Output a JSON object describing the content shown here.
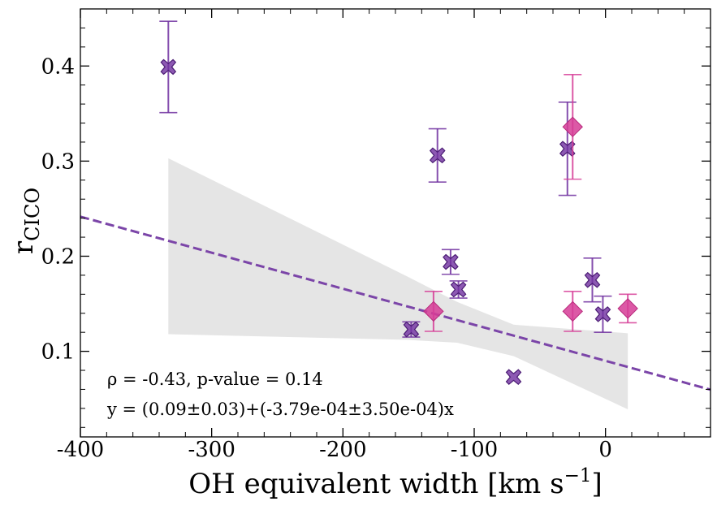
{
  "chart_data": {
    "type": "scatter",
    "title": "",
    "xlabel": "OH equivalent width [km s",
    "xlabel_sup": "−1",
    "xlabel_end": "]",
    "ylabel": "r",
    "ylabel_sub": "CICO",
    "xlim": [
      -400,
      80
    ],
    "ylim": [
      0.01,
      0.46
    ],
    "x_ticks": [
      -400,
      -300,
      -200,
      -100,
      0
    ],
    "x_tick_labels": [
      "-400",
      "-300",
      "-200",
      "-100",
      "0"
    ],
    "y_ticks": [
      0.1,
      0.2,
      0.3,
      0.4
    ],
    "y_tick_labels": [
      "0.1",
      "0.2",
      "0.3",
      "0.4"
    ],
    "grid": false,
    "annotations": [
      "ρ = -0.43, p-value = 0.14",
      "y = (0.09±0.03)+(-3.79e-04±3.50e-04)x"
    ],
    "fit": {
      "intercept": 0.09,
      "slope": -0.000379,
      "color": "#7b45a8"
    },
    "confidence_band": {
      "color": "#e5e5e5",
      "x": [
        -333,
        -150,
        -113,
        -70,
        17
      ],
      "upper": [
        0.303,
        0.178,
        0.152,
        0.128,
        0.119
      ],
      "lower": [
        0.118,
        0.112,
        0.109,
        0.095,
        0.039
      ]
    },
    "series": [
      {
        "name": "purple-crosses",
        "marker": "X",
        "color": "#7030a0",
        "points": [
          {
            "x": -333,
            "y": 0.399,
            "err": 0.048
          },
          {
            "x": -148,
            "y": 0.123,
            "err": 0.008
          },
          {
            "x": -128,
            "y": 0.306,
            "err": 0.028
          },
          {
            "x": -118,
            "y": 0.194,
            "err": 0.013
          },
          {
            "x": -112,
            "y": 0.165,
            "err": 0.009
          },
          {
            "x": -70,
            "y": 0.073,
            "err": 0.0
          },
          {
            "x": -29,
            "y": 0.313,
            "err": 0.049
          },
          {
            "x": -10,
            "y": 0.175,
            "err": 0.023
          },
          {
            "x": -2,
            "y": 0.139,
            "err": 0.019
          }
        ]
      },
      {
        "name": "pink-diamonds",
        "marker": "D",
        "color": "#d63c96",
        "points": [
          {
            "x": -131,
            "y": 0.142,
            "err": 0.021
          },
          {
            "x": -25,
            "y": 0.336,
            "err": 0.055
          },
          {
            "x": -25,
            "y": 0.142,
            "err": 0.021
          },
          {
            "x": 17,
            "y": 0.145,
            "err": 0.015
          }
        ]
      }
    ]
  }
}
